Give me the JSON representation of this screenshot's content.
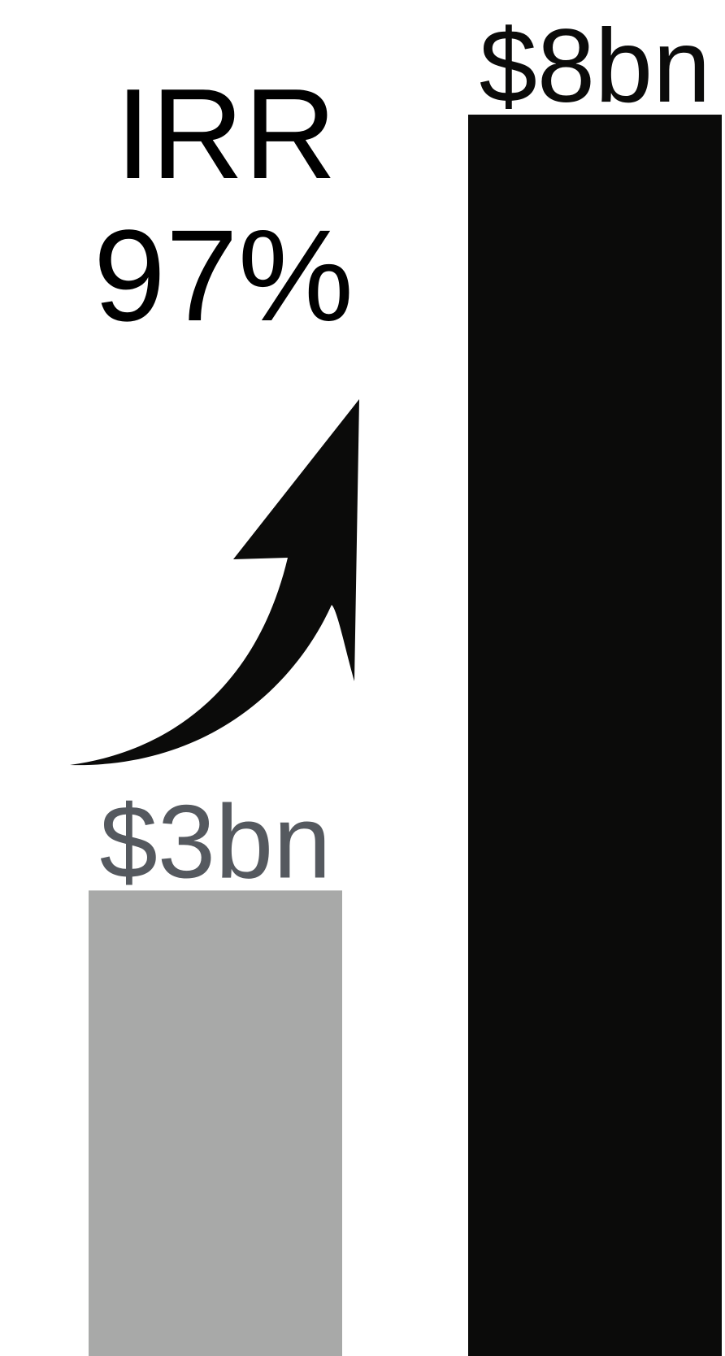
{
  "annotation": {
    "metric_label": "IRR",
    "metric_value": "97%",
    "arrow_icon": "curved-up-arrow-icon"
  },
  "chart_data": {
    "type": "bar",
    "categories": [
      "",
      ""
    ],
    "values": [
      3,
      8
    ],
    "data_labels": [
      "$3bn",
      "$8bn"
    ],
    "value_unit": "$bn",
    "ylim": [
      0,
      8
    ],
    "grid": false,
    "legend": "none",
    "colors": [
      "#a8a9a8",
      "#0b0b0a"
    ],
    "label_colors": [
      "#55595f",
      "#0b0b0a"
    ]
  }
}
